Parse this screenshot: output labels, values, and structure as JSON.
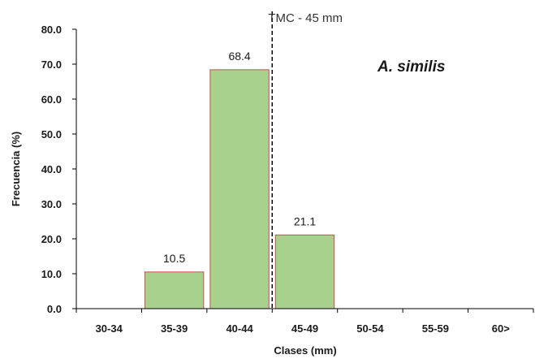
{
  "chart_data": {
    "type": "bar",
    "title": "A. similis",
    "xlabel": "Clases (mm)",
    "ylabel": "Frecuencia (%)",
    "categories": [
      "30-34",
      "35-39",
      "40-44",
      "45-49",
      "50-54",
      "55-59",
      "60>"
    ],
    "values": [
      0,
      10.5,
      68.4,
      21.1,
      0,
      0,
      0
    ],
    "data_labels": [
      "",
      "10.5",
      "68.4",
      "21.1",
      "",
      "",
      ""
    ],
    "ylim": [
      0,
      80
    ],
    "yticks": [
      "0.0",
      "10.0",
      "20.0",
      "30.0",
      "40.0",
      "50.0",
      "60.0",
      "70.0",
      "80.0"
    ],
    "grid": false,
    "bar_color": "#a9d18e",
    "bar_edge_color": "#c0504d",
    "reference_line": {
      "label": "TMC - 45 mm",
      "x_value": 45,
      "style": "dashed",
      "color": "#000000"
    }
  }
}
